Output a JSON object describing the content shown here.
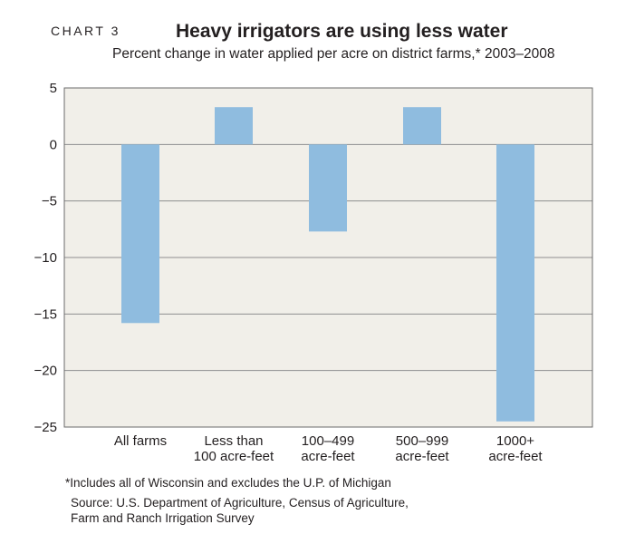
{
  "header": {
    "chart_label": "CHART 3",
    "title": "Heavy irrigators are using less water",
    "subtitle": "Percent change in water applied per acre on district farms,* 2003–2008"
  },
  "footer": {
    "footnote": "*Includes all of Wisconsin and excludes the U.P. of Michigan",
    "source_lines": [
      "Source: U.S. Department of Agriculture, Census of Agriculture,",
      "Farm and Ranch Irrigation Survey"
    ]
  },
  "colors": {
    "plot_background": "#f1efe9",
    "bar": "#8fbcdf",
    "gridline": "#8e8e8e",
    "axis_frame": "#6b6b6b"
  },
  "chart_data": {
    "type": "bar",
    "title": "Heavy irrigators are using less water",
    "subtitle": "Percent change in water applied per acre on district farms,* 2003–2008",
    "categories": [
      [
        "All farms"
      ],
      [
        "Less than",
        "100 acre-feet"
      ],
      [
        "100–499",
        "acre-feet"
      ],
      [
        "500–999",
        "acre-feet"
      ],
      [
        "1000+",
        "acre-feet"
      ]
    ],
    "values": [
      -15.8,
      3.3,
      -7.7,
      3.3,
      -24.5
    ],
    "ylim": [
      -25,
      5
    ],
    "yticks": [
      5,
      0,
      -5,
      -10,
      -15,
      -20,
      -25
    ],
    "ytick_labels": [
      "5",
      "0",
      "−5",
      "−10",
      "−15",
      "−20",
      "−25"
    ],
    "grid": true,
    "xlabel": "",
    "ylabel": ""
  }
}
